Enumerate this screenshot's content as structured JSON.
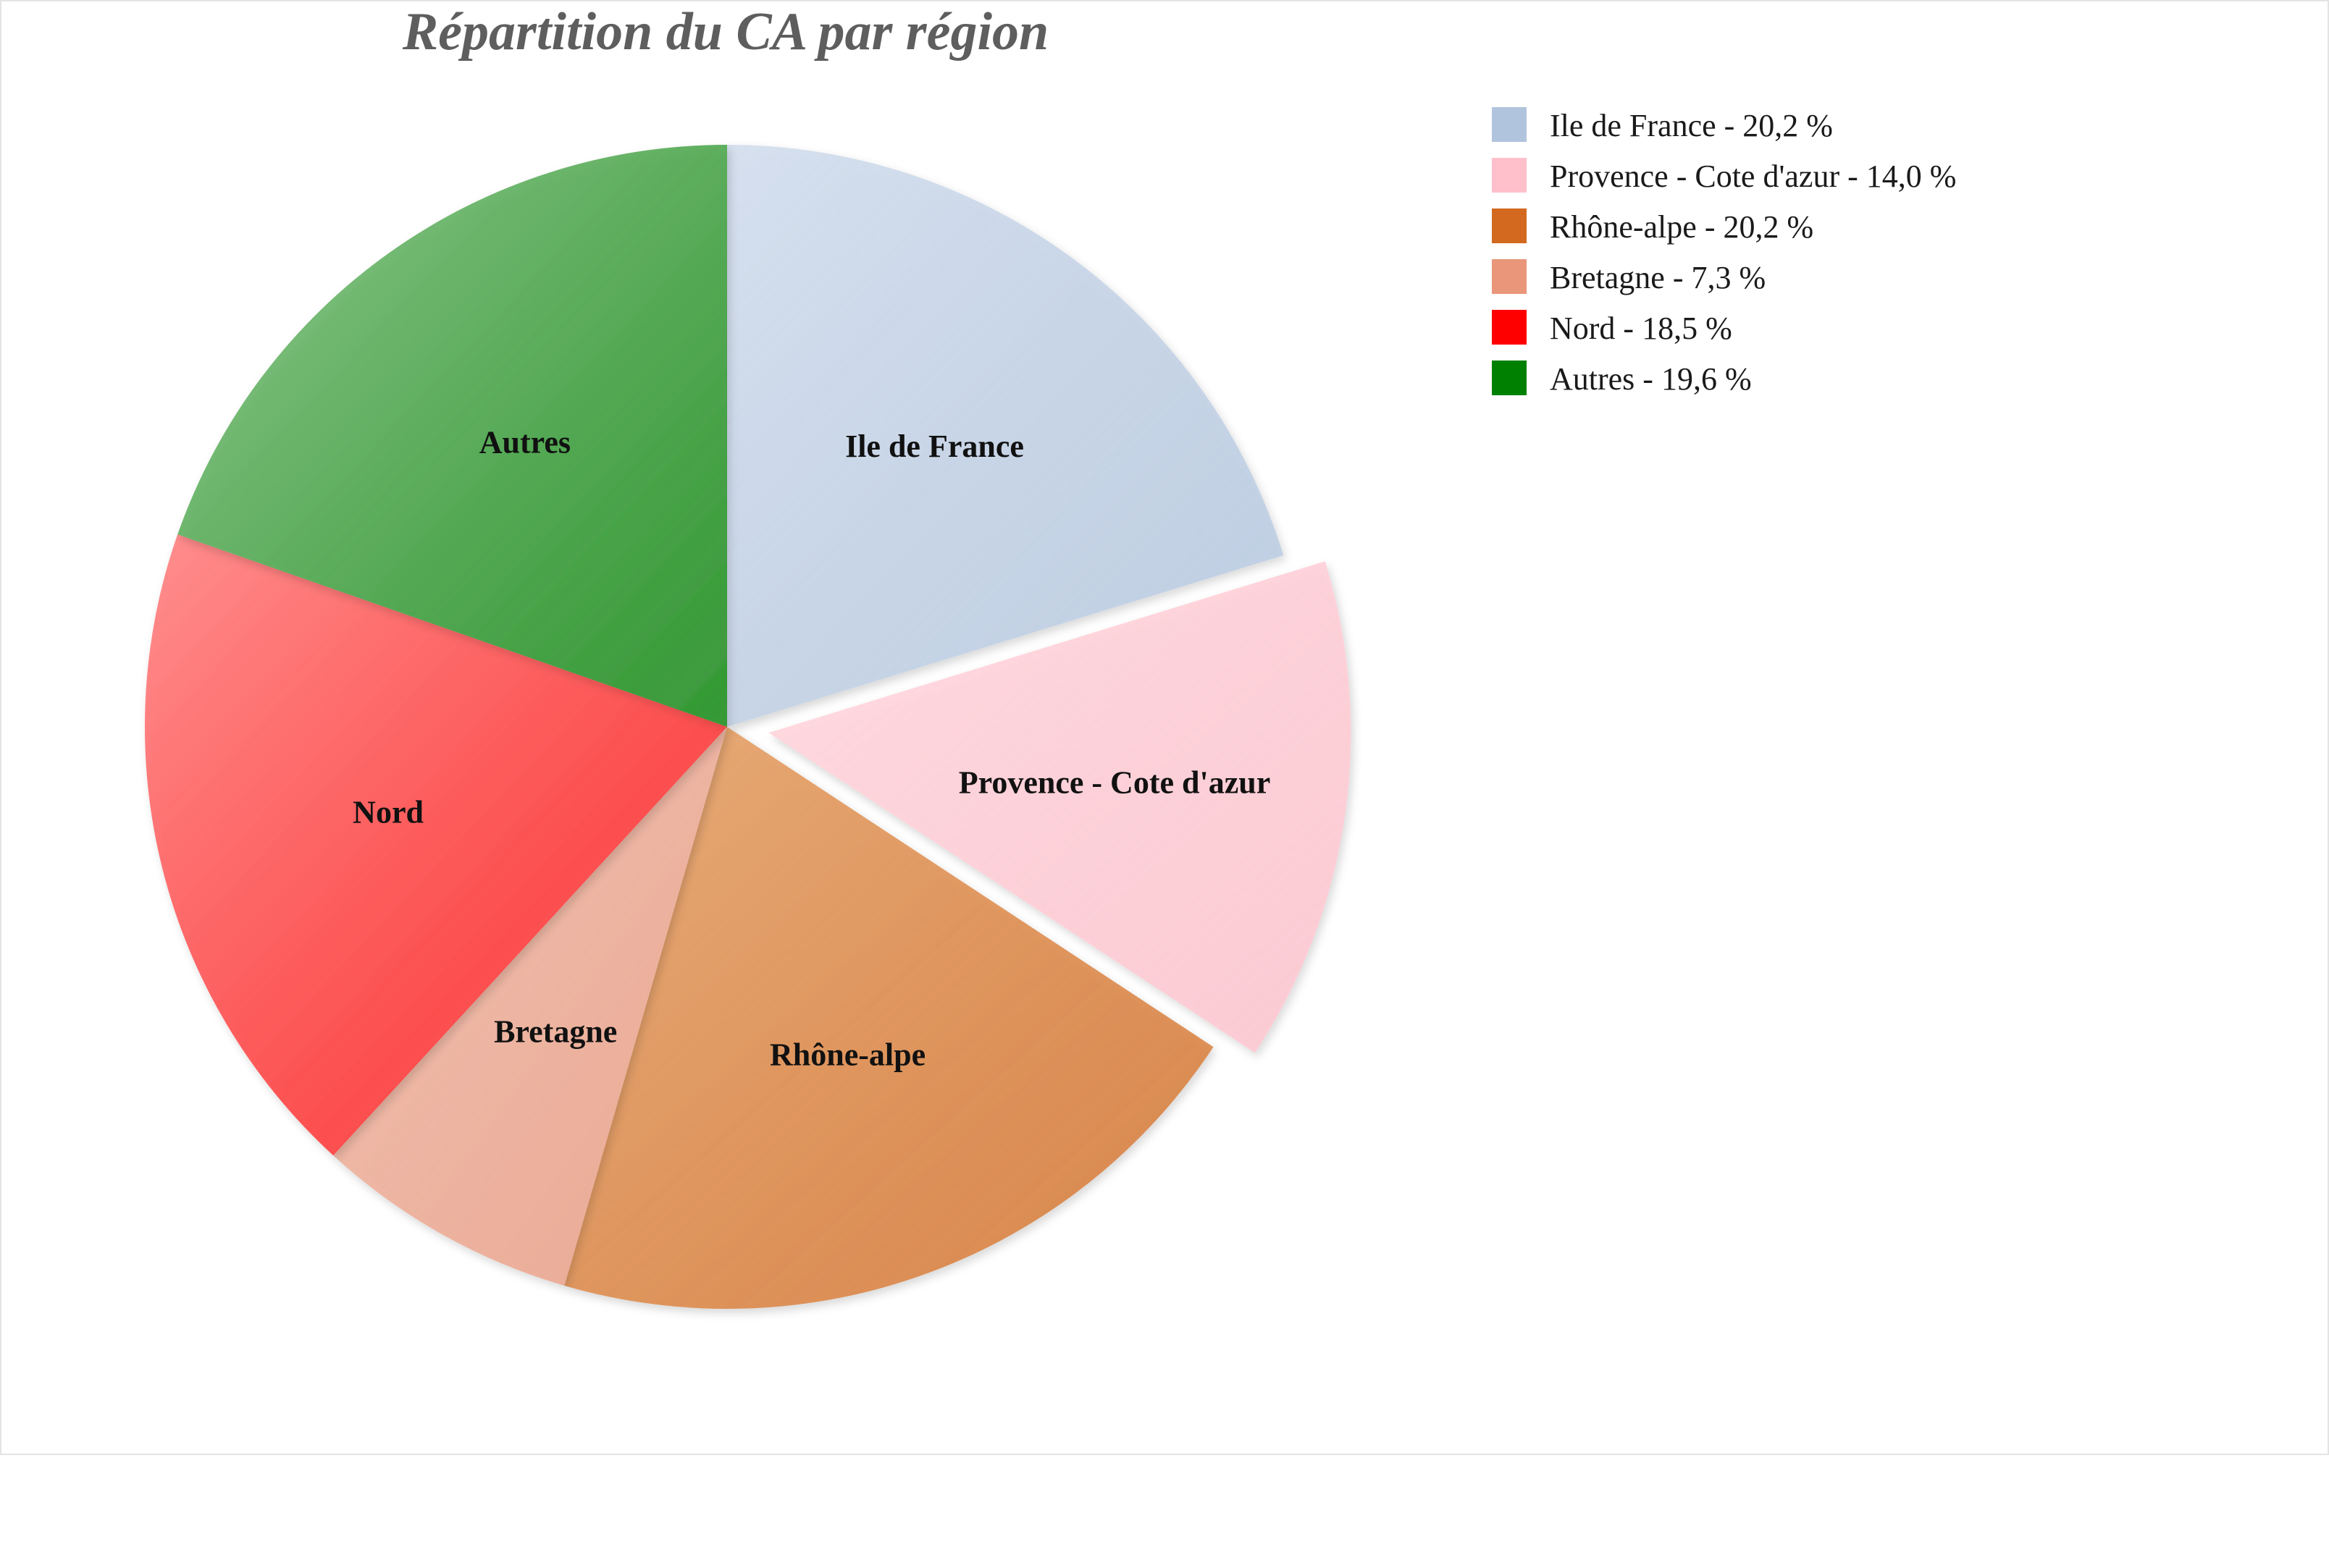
{
  "chart_data": {
    "type": "pie",
    "title": "Répartition du CA par région",
    "slices": [
      {
        "label": "Ile de France",
        "value": 20.2,
        "legend": "Ile de France - 20,2 %",
        "color": "#b0c4de",
        "light": "#d6e0ee",
        "exploded": false
      },
      {
        "label": "Provence - Cote d'azur",
        "value": 14.0,
        "legend": "Provence - Cote d'azur - 14,0 %",
        "color": "#ffc0cb",
        "light": "#ffdbe1",
        "exploded": true
      },
      {
        "label": "Rhône-alpe",
        "value": 20.2,
        "legend": "Rhône-alpe - 20,2 %",
        "color": "#d2691e",
        "light": "#e8ad7a",
        "exploded": false
      },
      {
        "label": "Bretagne",
        "value": 7.3,
        "legend": "Bretagne - 7,3 %",
        "color": "#e9967a",
        "light": "#f2c4b5",
        "exploded": false
      },
      {
        "label": "Nord",
        "value": 18.5,
        "legend": "Nord - 18,5 %",
        "color": "#ff0000",
        "light": "#ff8f8f",
        "exploded": false
      },
      {
        "label": "Autres",
        "value": 19.6,
        "legend": "Autres - 19,6 %",
        "color": "#008000",
        "light": "#93c993",
        "exploded": false
      }
    ],
    "start_angle": "top",
    "direction": "clockwise",
    "legend_position": "top-right"
  }
}
